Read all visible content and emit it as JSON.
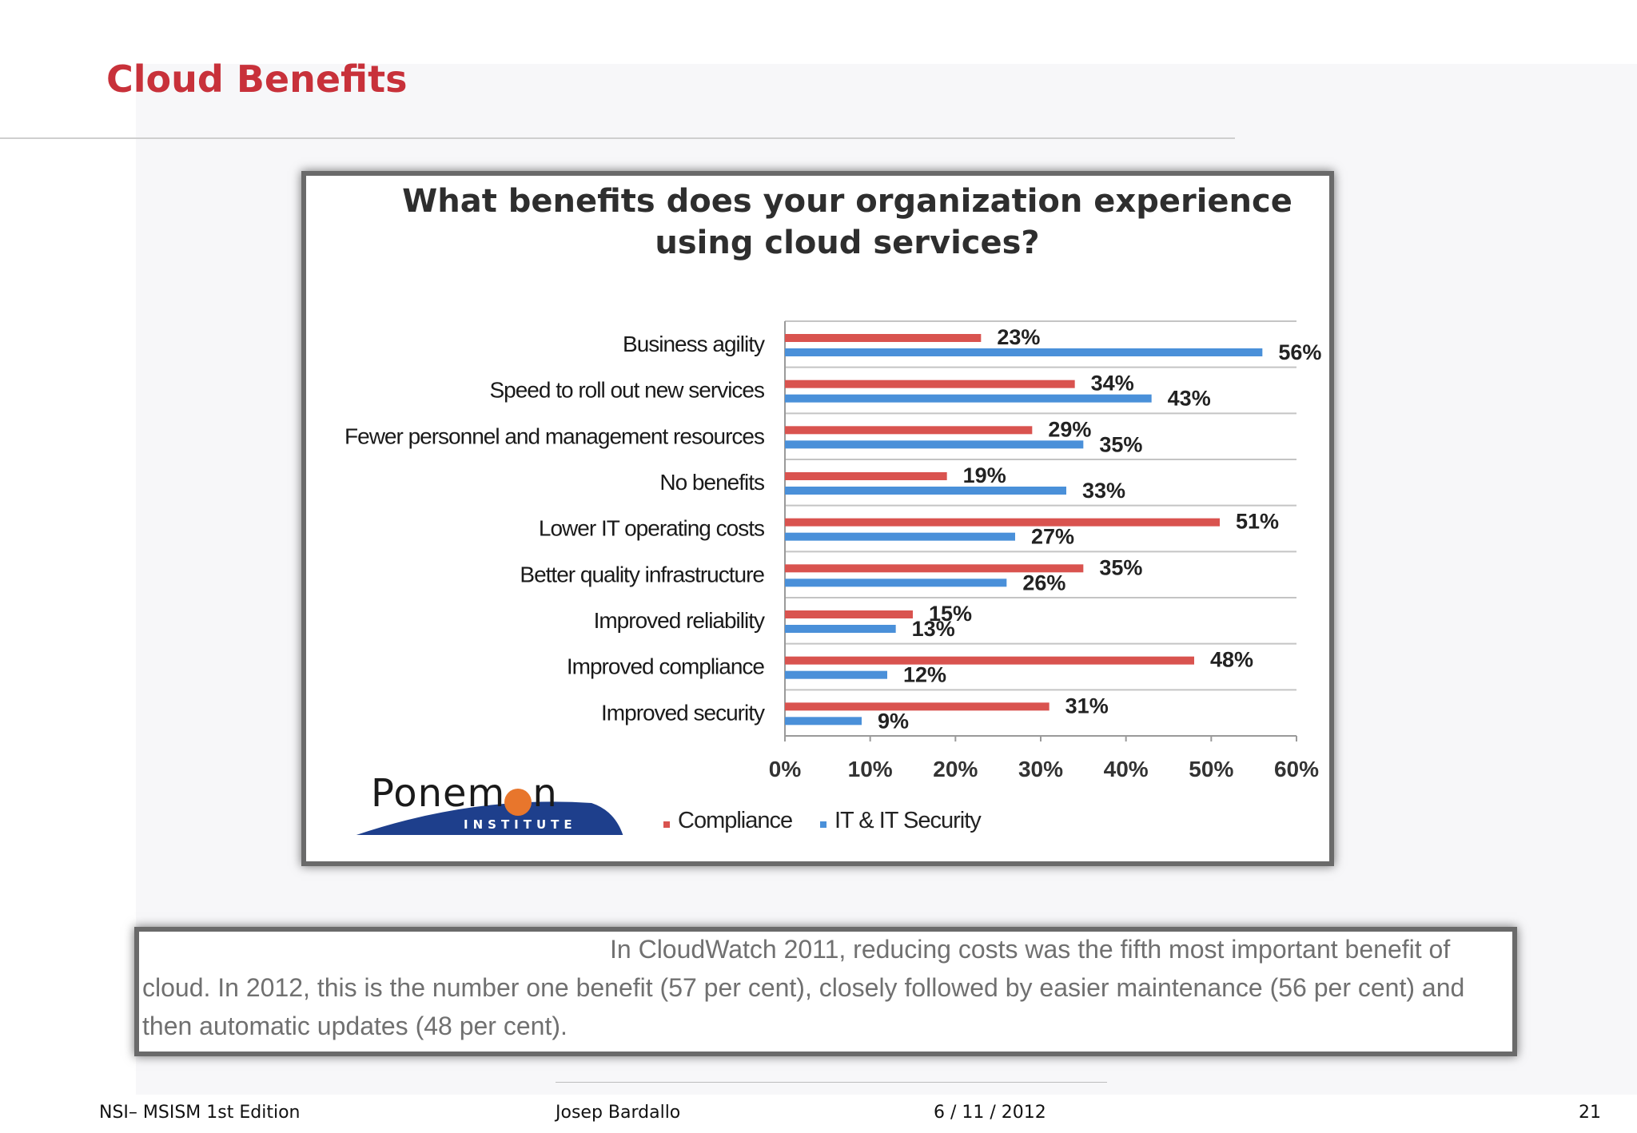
{
  "slide": {
    "title": "Cloud Benefits"
  },
  "chart_data": {
    "type": "bar",
    "orientation": "horizontal",
    "title": "What benefits does your organization experience using cloud services?",
    "title_lines": [
      "What benefits does your organization experience",
      "using cloud services?"
    ],
    "categories": [
      "Business agility",
      "Speed to roll out new services",
      "Fewer personnel and management resources",
      "No benefits",
      "Lower IT operating costs",
      "Better quality infrastructure",
      "Improved reliability",
      "Improved compliance",
      "Improved security"
    ],
    "series": [
      {
        "name": "Compliance",
        "color": "#d9534f",
        "values": [
          23,
          34,
          29,
          19,
          51,
          35,
          15,
          48,
          31
        ]
      },
      {
        "name": "IT & IT Security",
        "color": "#4a90d9",
        "values": [
          56,
          43,
          35,
          33,
          27,
          26,
          13,
          12,
          9
        ]
      }
    ],
    "xlim": [
      0,
      60
    ],
    "x_ticks": [
      0,
      10,
      20,
      30,
      40,
      50,
      60
    ],
    "x_tick_labels": [
      "0%",
      "10%",
      "20%",
      "30%",
      "40%",
      "50%",
      "60%"
    ],
    "value_suffix": "%",
    "grid": true,
    "legend_position": "bottom"
  },
  "logo": {
    "name_part1": "Ponem",
    "name_part2": "n",
    "subtitle": "INSTITUTE"
  },
  "note": {
    "text": "In CloudWatch 2011, reducing costs was the fifth most important benefit of cloud.  In 2012, this is the number one benefit (57 per cent), closely followed by easier maintenance (56 per cent) and then automatic updates (48 per cent)."
  },
  "footer": {
    "course": "NSI– MSISM 1st Edition",
    "author": "Josep Bardallo",
    "date": "6 / 11 / 2012",
    "page": "21"
  }
}
